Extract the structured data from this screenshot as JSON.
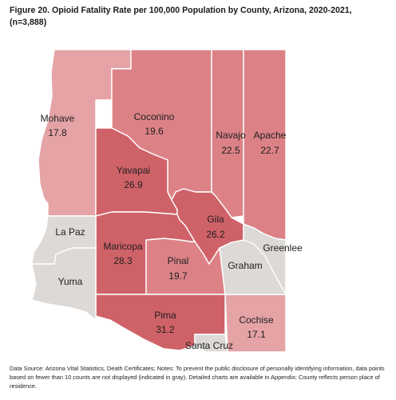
{
  "title": "Figure 20. Opioid Fatality Rate per 100,000 Population by County, Arizona, 2020-2021, (n=3,888)",
  "footnote": "Data Source: Arizona Vital Statistics, Death Certificates; Notes: To prevent the public disclosure of personally identifying information, data points based on fewer than 10 counts are not displayed (indicated in gray). Detailed charts are available in Appendix; County reflects person place of residence.",
  "colors": {
    "not_displayed": "#dcd9d6",
    "light": "#e5a3a6",
    "medium": "#dc8287",
    "dark": "#cf6268"
  },
  "counties": [
    {
      "id": "mohave",
      "name": "Mohave",
      "rate": "17.8",
      "shade": "light"
    },
    {
      "id": "coconino",
      "name": "Coconino",
      "rate": "19.6",
      "shade": "medium"
    },
    {
      "id": "navajo",
      "name": "Navajo",
      "rate": "22.5",
      "shade": "medium"
    },
    {
      "id": "apache",
      "name": "Apache",
      "rate": "22.7",
      "shade": "medium"
    },
    {
      "id": "yavapai",
      "name": "Yavapai",
      "rate": "26.9",
      "shade": "dark"
    },
    {
      "id": "gila",
      "name": "Gila",
      "rate": "26.2",
      "shade": "dark"
    },
    {
      "id": "maricopa",
      "name": "Maricopa",
      "rate": "28.3",
      "shade": "dark"
    },
    {
      "id": "pinal",
      "name": "Pinal",
      "rate": "19.7",
      "shade": "medium"
    },
    {
      "id": "pima",
      "name": "Pima",
      "rate": "31.2",
      "shade": "dark"
    },
    {
      "id": "cochise",
      "name": "Cochise",
      "rate": "17.1",
      "shade": "light"
    },
    {
      "id": "la-paz",
      "name": "La Paz",
      "rate": null,
      "shade": "not_displayed"
    },
    {
      "id": "yuma",
      "name": "Yuma",
      "rate": null,
      "shade": "not_displayed"
    },
    {
      "id": "graham",
      "name": "Graham",
      "rate": null,
      "shade": "not_displayed"
    },
    {
      "id": "greenlee",
      "name": "Greenlee",
      "rate": null,
      "shade": "not_displayed"
    },
    {
      "id": "santa-cruz",
      "name": "Santa Cruz",
      "rate": null,
      "shade": "not_displayed"
    }
  ]
}
